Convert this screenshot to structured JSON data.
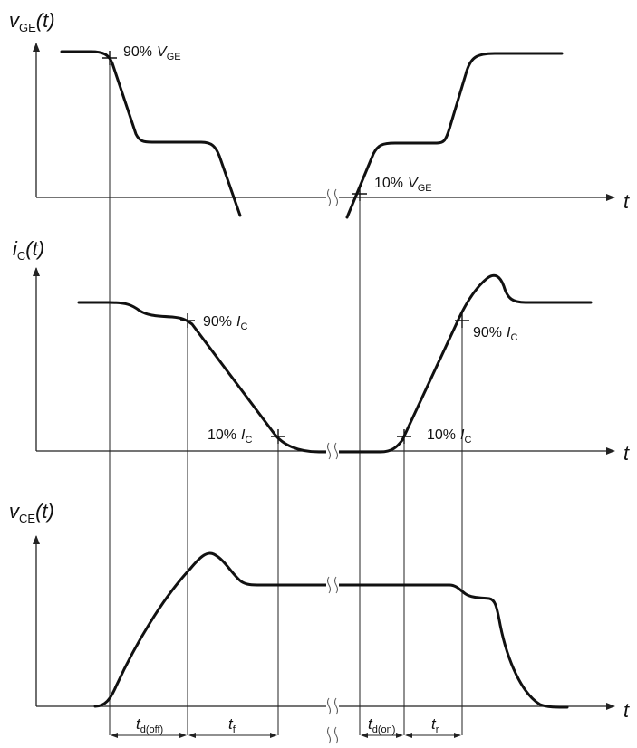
{
  "title": "",
  "plots": {
    "vge": {
      "ylabel_var": "v",
      "ylabel_sub": "GE",
      "ylabel_arg": "(t)",
      "xlabel": "t",
      "marker_off_pct": "90%",
      "marker_off_var": "V",
      "marker_off_sub": "GE",
      "marker_on_pct": "10%",
      "marker_on_var": "V",
      "marker_on_sub": "GE"
    },
    "ic": {
      "ylabel_var": "i",
      "ylabel_sub": "C",
      "ylabel_arg": "(t)",
      "xlabel": "t",
      "m1_pct": "90%",
      "m1_var": "I",
      "m1_sub": "C",
      "m2_pct": "10%",
      "m2_var": "I",
      "m2_sub": "C",
      "m3_pct": "10%",
      "m3_var": "I",
      "m3_sub": "C",
      "m4_pct": "90%",
      "m4_var": "I",
      "m4_sub": "C"
    },
    "vce": {
      "ylabel_var": "v",
      "ylabel_sub": "CE",
      "ylabel_arg": "(t)",
      "xlabel": "t"
    }
  },
  "intervals": {
    "td_off": {
      "var": "t",
      "sub": "d(off)"
    },
    "tf": {
      "var": "t",
      "sub": "f"
    },
    "td_on": {
      "var": "t",
      "sub": "d(on)"
    },
    "tr": {
      "var": "t",
      "sub": "r"
    }
  }
}
